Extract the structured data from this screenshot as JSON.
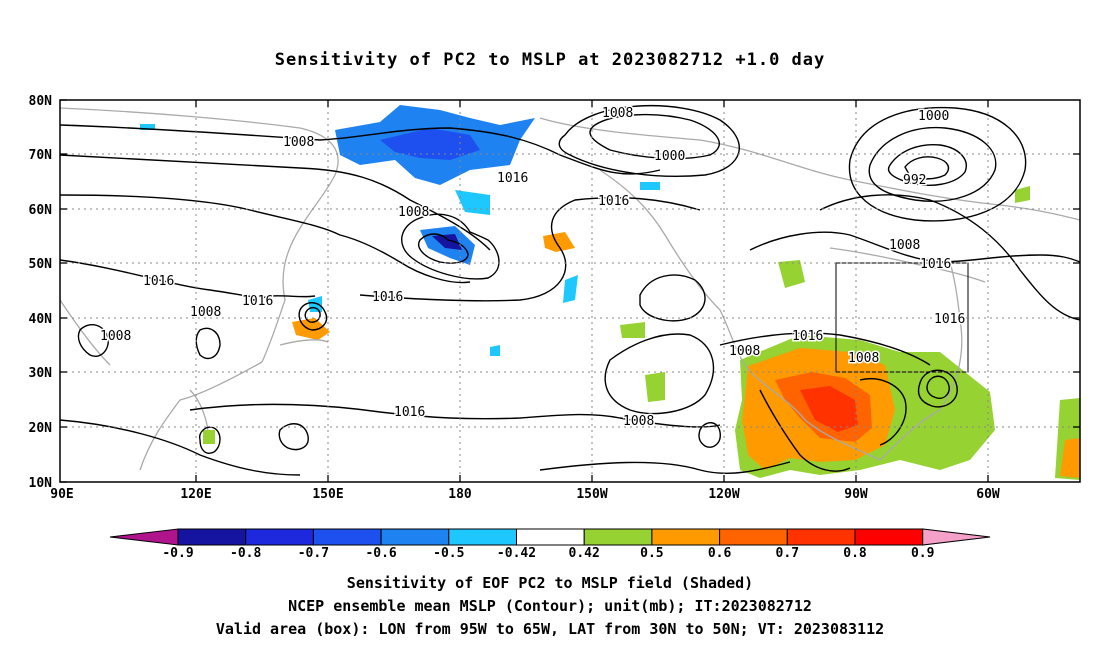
{
  "title": "Sensitivity of PC2 to MSLP at 2023082712 +1.0 day",
  "axes": {
    "lat_labels": [
      "80N",
      "70N",
      "60N",
      "50N",
      "40N",
      "30N",
      "20N",
      "10N"
    ],
    "lon_labels": [
      "90E",
      "120E",
      "150E",
      "180",
      "150W",
      "120W",
      "90W",
      "60W"
    ]
  },
  "colorbar": {
    "labels": [
      "-0.9",
      "-0.8",
      "-0.7",
      "-0.6",
      "-0.5",
      "-0.42",
      "0.42",
      "0.5",
      "0.6",
      "0.7",
      "0.8",
      "0.9"
    ],
    "colors": [
      "#b0148c",
      "#1414a0",
      "#1e28dc",
      "#1e50f0",
      "#1e82f0",
      "#1ec8ff",
      "#ffffff",
      "#96d232",
      "#ff9b00",
      "#ff6400",
      "#ff3200",
      "#ff0000",
      "#f5a0c8"
    ]
  },
  "contour_labels": [
    "1008",
    "1008",
    "1000",
    "1000",
    "992",
    "1016",
    "1016",
    "1008",
    "1008",
    "1016",
    "1016",
    "1016",
    "1008",
    "1008",
    "1016",
    "1016",
    "1016",
    "1008",
    "1008",
    "1016",
    "1008"
  ],
  "captions": {
    "line1": "Sensitivity of EOF PC2 to MSLP field (Shaded)",
    "line2": "NCEP ensemble mean MSLP (Contour); unit(mb); IT:2023082712",
    "line3": "Valid area (box): LON from 95W to 65W, LAT from 30N to 50N; VT: 2023083112"
  }
}
